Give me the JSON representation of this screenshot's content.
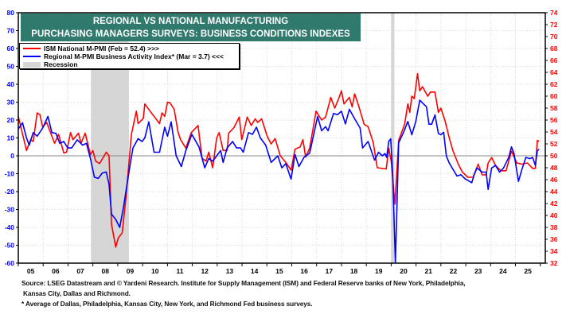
{
  "title": {
    "line1": "REGIONAL VS NATIONAL MANUFACTURING",
    "line2": "PURCHASING MANAGERS SURVEYS: BUSINESS CONDITIONS INDEXES"
  },
  "legend": {
    "ism": "ISM National M-PMI (Feb = 52.4) >>>",
    "regional": "Regional M-PMI Business Activity Index* (Mar = 3.7) <<<",
    "recession": "Recession"
  },
  "footer": {
    "source1": "Source: LSEG Datastream and © Yardeni Research. Institute for Supply Management (ISM) and Federal Reserve banks of New York, Philadelphia,",
    "source2": "Kansas City, Dallas and Richmond.",
    "note": "* Average of Dallas, Philadelphia, Kansas City, New York, and Richmond Fed business surveys."
  },
  "chart_data": {
    "type": "line",
    "title": "REGIONAL VS NATIONAL MANUFACTURING PURCHASING MANAGERS SURVEYS: BUSINESS CONDITIONS INDEXES",
    "x_ticks": [
      "05",
      "06",
      "07",
      "08",
      "09",
      "10",
      "11",
      "12",
      "13",
      "14",
      "15",
      "16",
      "17",
      "18",
      "19",
      "20",
      "21",
      "22",
      "23",
      "24",
      "25"
    ],
    "x_range": [
      2005.0,
      2026.2
    ],
    "left_axis": {
      "range": [
        -60,
        80
      ],
      "ticks": [
        80,
        70,
        60,
        50,
        40,
        30,
        20,
        10,
        0,
        -10,
        -20,
        -30,
        -40,
        -50,
        -60
      ],
      "color": "#0000ff"
    },
    "right_axis": {
      "range": [
        32,
        74
      ],
      "ticks": [
        74,
        72,
        70,
        68,
        66,
        64,
        62,
        60,
        58,
        56,
        54,
        52,
        50,
        48,
        46,
        44,
        42,
        40,
        38,
        36,
        34,
        32
      ],
      "color": "#ff0000"
    },
    "grid": true,
    "legend_position": "top-left",
    "recessions": [
      [
        2007.92,
        2009.45
      ],
      [
        2020.0,
        2020.13
      ]
    ],
    "colors": {
      "ism": "#ff0000",
      "regional": "#0000ff",
      "recession": "#d6d6d6",
      "title_bg": "#2f7a6d"
    },
    "series": [
      {
        "name": "ISM National M-PMI (Feb = 52.4) >>>",
        "axis": "right",
        "points": [
          [
            2005.0,
            56.6
          ],
          [
            2005.33,
            50.9
          ],
          [
            2005.5,
            52.7
          ],
          [
            2005.6,
            52.4
          ],
          [
            2005.76,
            57.2
          ],
          [
            2005.87,
            56.9
          ],
          [
            2005.98,
            54.8
          ],
          [
            2006.14,
            55.6
          ],
          [
            2006.46,
            52.1
          ],
          [
            2006.62,
            53.6
          ],
          [
            2006.83,
            50.5
          ],
          [
            2006.94,
            50.6
          ],
          [
            2007.1,
            53.9
          ],
          [
            2007.2,
            52.7
          ],
          [
            2007.42,
            53.8
          ],
          [
            2007.52,
            52.1
          ],
          [
            2007.69,
            53.8
          ],
          [
            2007.9,
            50.2
          ],
          [
            2008.0,
            50.9
          ],
          [
            2008.11,
            49.1
          ],
          [
            2008.27,
            48.7
          ],
          [
            2008.54,
            50.6
          ],
          [
            2008.65,
            50.0
          ],
          [
            2008.75,
            38.5
          ],
          [
            2008.92,
            34.7
          ],
          [
            2009.02,
            36.2
          ],
          [
            2009.18,
            37.1
          ],
          [
            2009.34,
            43.4
          ],
          [
            2009.55,
            53.6
          ],
          [
            2009.75,
            57.5
          ],
          [
            2009.82,
            55.4
          ],
          [
            2010.03,
            56.3
          ],
          [
            2010.09,
            58.7
          ],
          [
            2010.3,
            57.5
          ],
          [
            2010.52,
            56.3
          ],
          [
            2010.68,
            55.4
          ],
          [
            2010.78,
            57.2
          ],
          [
            2010.89,
            56.6
          ],
          [
            2011.0,
            59.0
          ],
          [
            2011.1,
            58.9
          ],
          [
            2011.27,
            57.8
          ],
          [
            2011.43,
            53.9
          ],
          [
            2011.53,
            52.7
          ],
          [
            2011.74,
            51.3
          ],
          [
            2011.96,
            53.9
          ],
          [
            2012.23,
            55.1
          ],
          [
            2012.39,
            49.6
          ],
          [
            2012.55,
            49.1
          ],
          [
            2012.66,
            50.6
          ],
          [
            2012.82,
            48.0
          ],
          [
            2012.98,
            53.0
          ],
          [
            2013.08,
            53.9
          ],
          [
            2013.24,
            50.9
          ],
          [
            2013.4,
            50.9
          ],
          [
            2013.46,
            53.8
          ],
          [
            2013.67,
            54.7
          ],
          [
            2013.89,
            56.5
          ],
          [
            2013.99,
            52.7
          ],
          [
            2014.21,
            56.5
          ],
          [
            2014.37,
            55.1
          ],
          [
            2014.53,
            56.2
          ],
          [
            2014.63,
            55.6
          ],
          [
            2014.79,
            56.2
          ],
          [
            2015.01,
            53.3
          ],
          [
            2015.17,
            52.0
          ],
          [
            2015.33,
            52.9
          ],
          [
            2015.54,
            50.0
          ],
          [
            2015.76,
            48.9
          ],
          [
            2015.97,
            47.6
          ],
          [
            2016.13,
            51.1
          ],
          [
            2016.34,
            51.5
          ],
          [
            2016.45,
            52.7
          ],
          [
            2016.56,
            49.8
          ],
          [
            2016.72,
            51.3
          ],
          [
            2016.98,
            57.5
          ],
          [
            2017.2,
            56.0
          ],
          [
            2017.36,
            56.5
          ],
          [
            2017.57,
            59.8
          ],
          [
            2017.73,
            58.0
          ],
          [
            2017.89,
            59.6
          ],
          [
            2018.0,
            60.9
          ],
          [
            2018.1,
            58.7
          ],
          [
            2018.32,
            59.8
          ],
          [
            2018.43,
            58.2
          ],
          [
            2018.53,
            60.4
          ],
          [
            2018.69,
            58.4
          ],
          [
            2018.91,
            55.3
          ],
          [
            2019.07,
            54.9
          ],
          [
            2019.28,
            52.2
          ],
          [
            2019.44,
            48.0
          ],
          [
            2019.8,
            47.8
          ],
          [
            2019.9,
            51.3
          ],
          [
            2020.0,
            49.1
          ],
          [
            2020.15,
            41.9
          ],
          [
            2020.3,
            52.6
          ],
          [
            2020.54,
            55.3
          ],
          [
            2020.67,
            58.7
          ],
          [
            2020.75,
            57.3
          ],
          [
            2020.83,
            60.0
          ],
          [
            2020.93,
            59.6
          ],
          [
            2021.06,
            63.8
          ],
          [
            2021.15,
            60.9
          ],
          [
            2021.26,
            61.6
          ],
          [
            2021.47,
            60.0
          ],
          [
            2021.58,
            60.7
          ],
          [
            2021.76,
            60.7
          ],
          [
            2021.9,
            57.3
          ],
          [
            2022.0,
            58.0
          ],
          [
            2022.17,
            55.8
          ],
          [
            2022.33,
            53.1
          ],
          [
            2022.49,
            50.8
          ],
          [
            2022.7,
            48.6
          ],
          [
            2022.86,
            47.3
          ],
          [
            2023.08,
            46.4
          ],
          [
            2023.29,
            46.4
          ],
          [
            2023.5,
            48.6
          ],
          [
            2023.66,
            46.8
          ],
          [
            2023.82,
            46.8
          ],
          [
            2023.9,
            48.8
          ],
          [
            2024.04,
            49.7
          ],
          [
            2024.2,
            48.4
          ],
          [
            2024.41,
            47.5
          ],
          [
            2024.62,
            47.5
          ],
          [
            2024.84,
            50.8
          ],
          [
            2025.05,
            48.8
          ],
          [
            2025.26,
            48.6
          ],
          [
            2025.48,
            48.8
          ],
          [
            2025.69,
            47.9
          ],
          [
            2025.8,
            47.9
          ],
          [
            2025.88,
            52.6
          ],
          [
            2025.95,
            52.4
          ]
        ]
      },
      {
        "name": "Regional M-PMI Business Activity Index* (Mar = 3.7) <<<",
        "axis": "left",
        "points": [
          [
            2005.0,
            15
          ],
          [
            2005.17,
            18.5
          ],
          [
            2005.33,
            10
          ],
          [
            2005.44,
            6
          ],
          [
            2005.6,
            13
          ],
          [
            2005.76,
            11
          ],
          [
            2005.98,
            15.5
          ],
          [
            2006.19,
            22
          ],
          [
            2006.35,
            13
          ],
          [
            2006.51,
            12.6
          ],
          [
            2006.67,
            7
          ],
          [
            2006.83,
            8
          ],
          [
            2006.99,
            4.4
          ],
          [
            2007.15,
            4.4
          ],
          [
            2007.37,
            9
          ],
          [
            2007.58,
            6
          ],
          [
            2007.74,
            7
          ],
          [
            2007.9,
            -1.5
          ],
          [
            2008.06,
            -12
          ],
          [
            2008.22,
            -12.6
          ],
          [
            2008.38,
            -9.6
          ],
          [
            2008.54,
            -9
          ],
          [
            2008.65,
            -16
          ],
          [
            2008.75,
            -32.6
          ],
          [
            2008.92,
            -35.6
          ],
          [
            2009.08,
            -40
          ],
          [
            2009.24,
            -28
          ],
          [
            2009.45,
            -9
          ],
          [
            2009.61,
            4.4
          ],
          [
            2009.82,
            9.6
          ],
          [
            2009.98,
            8
          ],
          [
            2010.09,
            10
          ],
          [
            2010.25,
            19
          ],
          [
            2010.46,
            2
          ],
          [
            2010.68,
            2
          ],
          [
            2010.89,
            16
          ],
          [
            2011.0,
            11
          ],
          [
            2011.15,
            19
          ],
          [
            2011.35,
            0
          ],
          [
            2011.56,
            -6
          ],
          [
            2011.74,
            3
          ],
          [
            2011.98,
            12
          ],
          [
            2012.27,
            5
          ],
          [
            2012.5,
            -6.7
          ],
          [
            2012.66,
            -1.5
          ],
          [
            2012.82,
            -3
          ],
          [
            2012.98,
            0
          ],
          [
            2013.14,
            3
          ],
          [
            2013.24,
            -3.7
          ],
          [
            2013.4,
            4.4
          ],
          [
            2013.62,
            8
          ],
          [
            2013.78,
            4.4
          ],
          [
            2013.94,
            4.4
          ],
          [
            2014.05,
            2
          ],
          [
            2014.26,
            13
          ],
          [
            2014.42,
            12
          ],
          [
            2014.58,
            16
          ],
          [
            2014.74,
            10
          ],
          [
            2014.95,
            6
          ],
          [
            2015.17,
            -3.7
          ],
          [
            2015.44,
            0
          ],
          [
            2015.6,
            -6.7
          ],
          [
            2015.76,
            -4.4
          ],
          [
            2015.97,
            -13
          ],
          [
            2016.13,
            0.7
          ],
          [
            2016.29,
            -6
          ],
          [
            2016.5,
            -0.7
          ],
          [
            2016.72,
            1.5
          ],
          [
            2017.04,
            22
          ],
          [
            2017.2,
            14
          ],
          [
            2017.36,
            16.3
          ],
          [
            2017.46,
            14
          ],
          [
            2017.68,
            23.7
          ],
          [
            2017.84,
            23
          ],
          [
            2018.0,
            25
          ],
          [
            2018.16,
            17.8
          ],
          [
            2018.32,
            26
          ],
          [
            2018.53,
            20.7
          ],
          [
            2018.75,
            15.5
          ],
          [
            2018.85,
            4.4
          ],
          [
            2019.07,
            8
          ],
          [
            2019.33,
            -2.4
          ],
          [
            2019.49,
            2
          ],
          [
            2019.64,
            0
          ],
          [
            2019.75,
            1.3
          ],
          [
            2019.82,
            -0.9
          ],
          [
            2019.9,
            8
          ],
          [
            2019.98,
            9.5
          ],
          [
            2020.06,
            -10.6
          ],
          [
            2020.17,
            -59.7
          ],
          [
            2020.3,
            7.3
          ],
          [
            2020.5,
            13.2
          ],
          [
            2020.67,
            19.2
          ],
          [
            2020.83,
            11.8
          ],
          [
            2020.99,
            19.2
          ],
          [
            2021.15,
            31.1
          ],
          [
            2021.26,
            29.6
          ],
          [
            2021.42,
            27.4
          ],
          [
            2021.52,
            17.7
          ],
          [
            2021.63,
            17.7
          ],
          [
            2021.76,
            22.9
          ],
          [
            2021.9,
            12.5
          ],
          [
            2022.0,
            11.8
          ],
          [
            2022.11,
            13.2
          ],
          [
            2022.22,
            -0.1
          ],
          [
            2022.33,
            -3.9
          ],
          [
            2022.49,
            -7.6
          ],
          [
            2022.65,
            -11.3
          ],
          [
            2022.81,
            -10.6
          ],
          [
            2022.97,
            -12.8
          ],
          [
            2023.24,
            -15
          ],
          [
            2023.34,
            -10.6
          ],
          [
            2023.45,
            -6.8
          ],
          [
            2023.66,
            -9.1
          ],
          [
            2023.82,
            -9.1
          ],
          [
            2023.9,
            -18.8
          ],
          [
            2024.04,
            -6.8
          ],
          [
            2024.2,
            -5.4
          ],
          [
            2024.36,
            -9.1
          ],
          [
            2024.52,
            -6.8
          ],
          [
            2024.73,
            -0.9
          ],
          [
            2024.84,
            5
          ],
          [
            2024.94,
            1.3
          ],
          [
            2025.12,
            -14.3
          ],
          [
            2025.26,
            -7.6
          ],
          [
            2025.42,
            -0.9
          ],
          [
            2025.58,
            -1.6
          ],
          [
            2025.69,
            -0.9
          ],
          [
            2025.8,
            -5.4
          ],
          [
            2025.88,
            2.8
          ],
          [
            2025.95,
            3.7
          ]
        ]
      }
    ]
  }
}
